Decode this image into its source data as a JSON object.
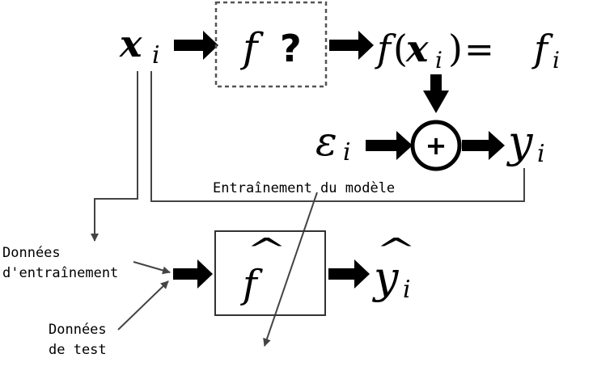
{
  "top": {
    "input_main": "x",
    "input_sub": "i",
    "unknown_f": "f",
    "unknown_q": "?",
    "output_f": "f",
    "output_open": "(",
    "output_x": "x",
    "output_x_sub": "i",
    "output_close": ")",
    "output_eq": "=",
    "output_fi": "f",
    "output_fi_sub": "i"
  },
  "middle": {
    "noise_main": "ε",
    "noise_sub": "i",
    "plus": "+",
    "y_main": "y",
    "y_sub": "i"
  },
  "labels": {
    "training": "Entraînement du modèle",
    "train_data_line1": "Données",
    "train_data_line2": "d'entraînement",
    "test_data_line1": "Données",
    "test_data_line2": "de test"
  },
  "model": {
    "fhat": "f",
    "hat_mark": "^",
    "yhat_main": "y",
    "yhat_sub": "i"
  }
}
